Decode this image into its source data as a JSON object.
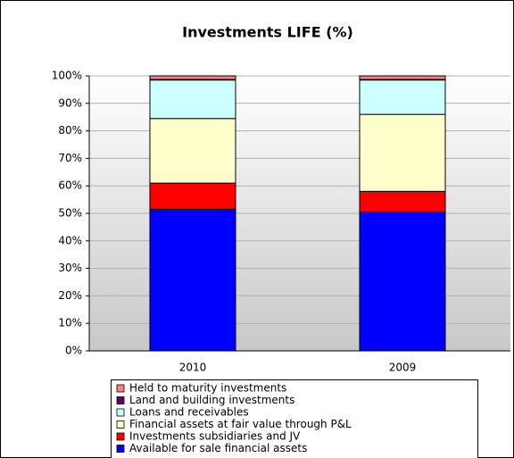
{
  "chart_data": {
    "type": "stacked_bar",
    "title": "Investments LIFE (%)",
    "categories": [
      "2010",
      "2009"
    ],
    "series": [
      {
        "name": "Available for sale financial assets",
        "color": "#0000ff",
        "values": [
          51.5,
          50.5
        ]
      },
      {
        "name": "Investments subsidiaries and JV",
        "color": "#ff0000",
        "values": [
          9.5,
          7.5
        ]
      },
      {
        "name": "Financial assets at fair value through P&L",
        "color": "#ffffcc",
        "values": [
          23.5,
          28
        ]
      },
      {
        "name": "Loans and receivables",
        "color": "#ccffff",
        "values": [
          14,
          12.5
        ]
      },
      {
        "name": "Land and building investments",
        "color": "#660066",
        "values": [
          0.2,
          0.2
        ]
      },
      {
        "name": "Held to maturity investments",
        "color": "#ff8080",
        "values": [
          1.3,
          1.3
        ]
      }
    ],
    "ylim": [
      0,
      100
    ],
    "yticks": [
      {
        "value": 0,
        "label": "0%"
      },
      {
        "value": 10,
        "label": "10%"
      },
      {
        "value": 20,
        "label": "20%"
      },
      {
        "value": 30,
        "label": "30%"
      },
      {
        "value": 40,
        "label": "40%"
      },
      {
        "value": 50,
        "label": "50%"
      },
      {
        "value": 60,
        "label": "60%"
      },
      {
        "value": 70,
        "label": "70%"
      },
      {
        "value": 80,
        "label": "80%"
      },
      {
        "value": 90,
        "label": "90%"
      },
      {
        "value": 100,
        "label": "100%"
      }
    ],
    "grid": true
  }
}
